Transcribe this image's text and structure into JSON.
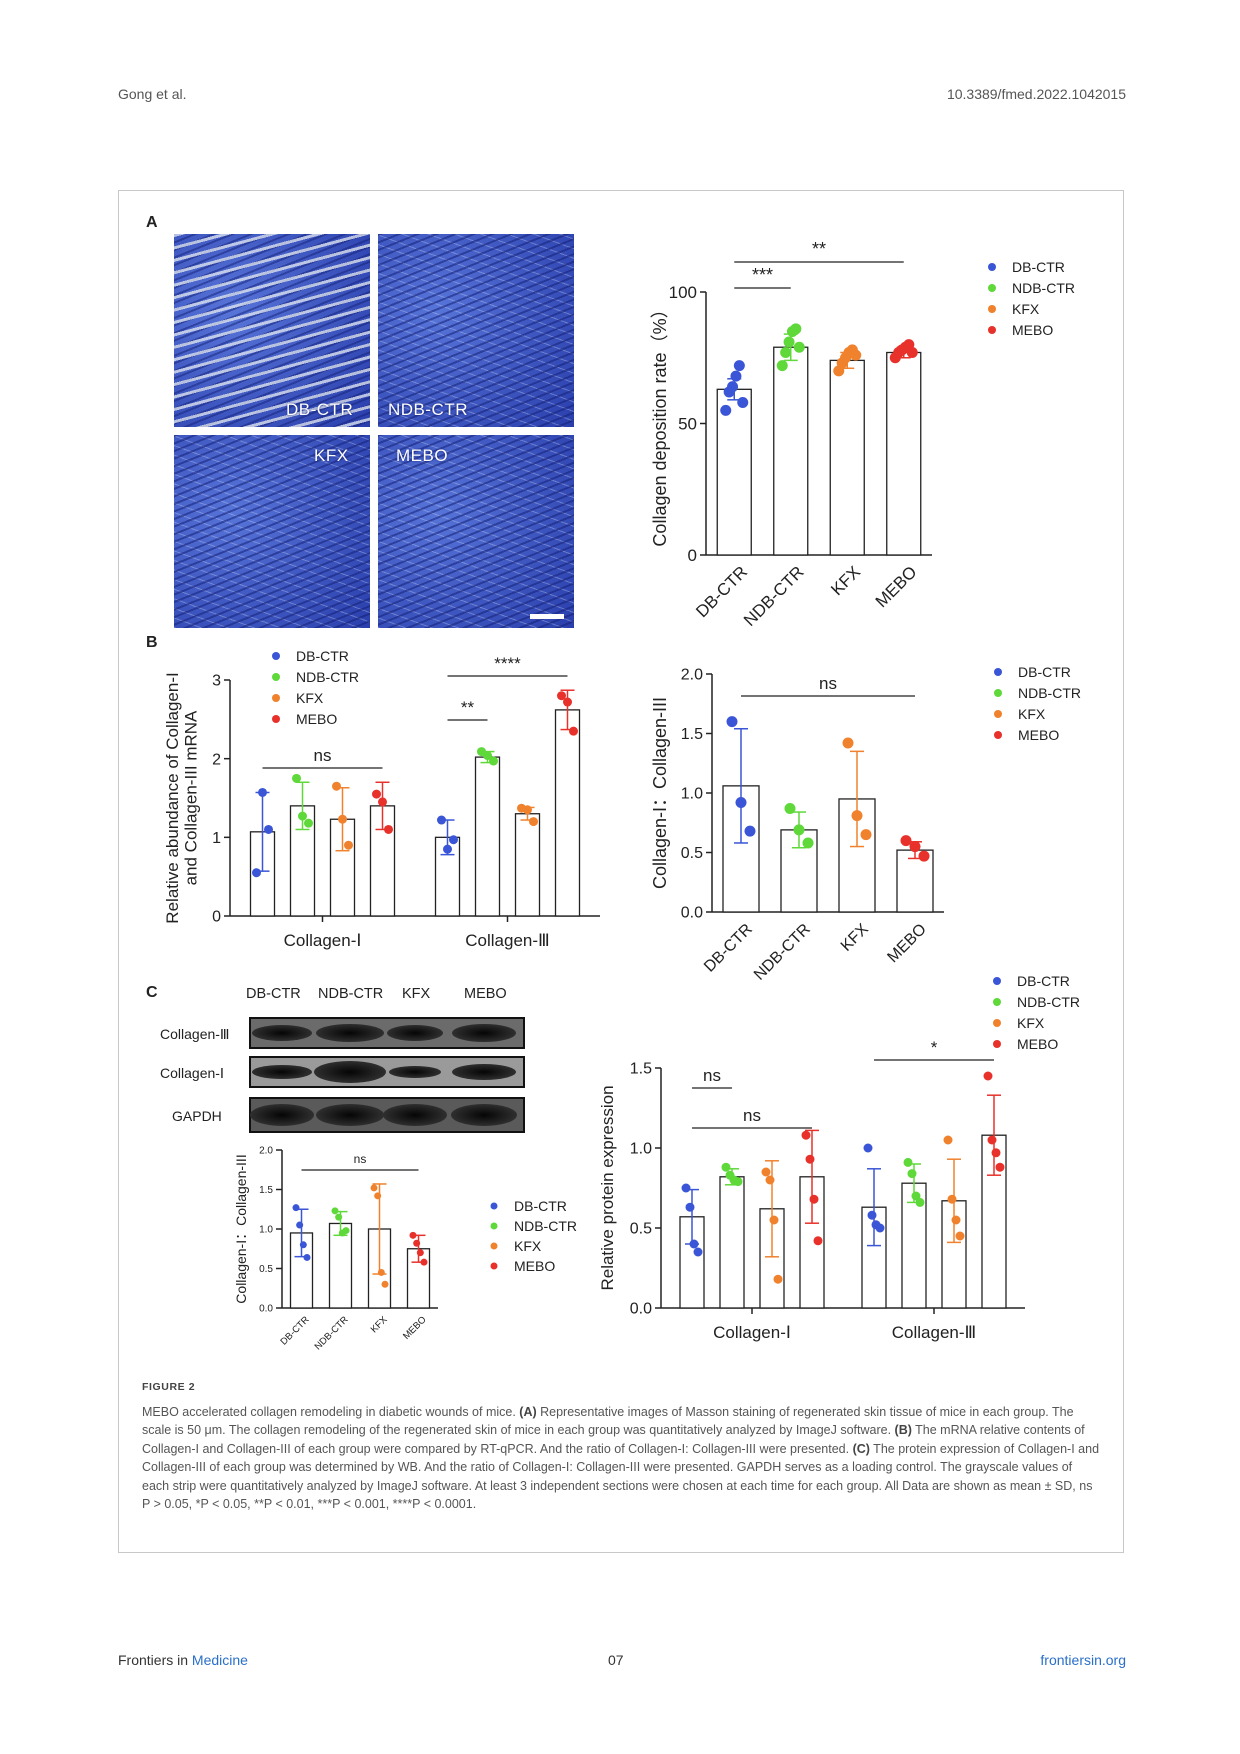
{
  "header": {
    "authors": "Gong et al.",
    "doi": "10.3389/fmed.2022.1042015"
  },
  "panels": {
    "a": "A",
    "b": "B",
    "c": "C"
  },
  "micrographs": [
    {
      "label": "DB-CTR"
    },
    {
      "label": "NDB-CTR"
    },
    {
      "label": "KFX"
    },
    {
      "label": "MEBO"
    }
  ],
  "groups": [
    "DB-CTR",
    "NDB-CTR",
    "KFX",
    "MEBO"
  ],
  "colors": {
    "DB-CTR": "#3a55d6",
    "NDB-CTR": "#5fd83a",
    "KFX": "#f0822d",
    "MEBO": "#e8312a"
  },
  "chart_data": [
    {
      "id": "A",
      "type": "bar",
      "categories": [
        "DB-CTR",
        "NDB-CTR",
        "KFX",
        "MEBO"
      ],
      "values": [
        63,
        79,
        74,
        77
      ],
      "errors": [
        4,
        5,
        3,
        2
      ],
      "points": [
        [
          55,
          62,
          64,
          68,
          72,
          58
        ],
        [
          72,
          77,
          81,
          85,
          86,
          79
        ],
        [
          70,
          73,
          75,
          77,
          78,
          76
        ],
        [
          75,
          77,
          78,
          79,
          80,
          77
        ]
      ],
      "ylabel": "Collagen deposition rate（%）",
      "ylim": [
        0,
        100
      ],
      "yticks": [
        0,
        50,
        100
      ],
      "significance": [
        {
          "from": 1,
          "to": 2,
          "label": "***"
        },
        {
          "from": 1,
          "to": 4,
          "label": "**"
        }
      ],
      "legend": [
        "DB-CTR",
        "NDB-CTR",
        "KFX",
        "MEBO"
      ]
    },
    {
      "id": "B1",
      "type": "bar",
      "groups": [
        "Collagen-Ⅰ",
        "Collagen-Ⅲ"
      ],
      "series": [
        {
          "name": "DB-CTR",
          "values": [
            1.07,
            1.0
          ],
          "errors": [
            0.5,
            0.22
          ],
          "points": [
            [
              0.55,
              1.57,
              1.1
            ],
            [
              1.22,
              0.85,
              0.97
            ]
          ]
        },
        {
          "name": "NDB-CTR",
          "values": [
            1.4,
            2.02
          ],
          "errors": [
            0.3,
            0.07
          ],
          "points": [
            [
              1.75,
              1.27,
              1.18
            ],
            [
              2.09,
              2.04,
              1.97
            ]
          ]
        },
        {
          "name": "KFX",
          "values": [
            1.23,
            1.3
          ],
          "errors": [
            0.4,
            0.08
          ],
          "points": [
            [
              1.65,
              1.23,
              0.9
            ],
            [
              1.37,
              1.35,
              1.2
            ]
          ]
        },
        {
          "name": "MEBO",
          "values": [
            1.4,
            2.62
          ],
          "errors": [
            0.3,
            0.25
          ],
          "points": [
            [
              1.55,
              1.45,
              1.1
            ],
            [
              2.8,
              2.72,
              2.35
            ]
          ]
        }
      ],
      "ylabel": "Relative abundance of Collagen-I and Collagen-III mRNA",
      "ylim": [
        0,
        3
      ],
      "yticks": [
        0,
        1,
        2,
        3
      ],
      "significance": [
        {
          "group": 0,
          "from": 1,
          "to": 4,
          "label": "ns"
        },
        {
          "group": 1,
          "from": 1,
          "to": 2,
          "label": "**"
        },
        {
          "group": 1,
          "from": 1,
          "to": 4,
          "label": "****"
        }
      ],
      "legend": [
        "DB-CTR",
        "NDB-CTR",
        "KFX",
        "MEBO"
      ]
    },
    {
      "id": "B2",
      "type": "bar",
      "categories": [
        "DB-CTR",
        "NDB-CTR",
        "KFX",
        "MEBO"
      ],
      "values": [
        1.06,
        0.69,
        0.95,
        0.52
      ],
      "errors": [
        0.48,
        0.15,
        0.4,
        0.07
      ],
      "points": [
        [
          1.6,
          0.92,
          0.68
        ],
        [
          0.87,
          0.69,
          0.58
        ],
        [
          1.42,
          0.81,
          0.65
        ],
        [
          0.6,
          0.55,
          0.47
        ]
      ],
      "ylabel": "Collagen-I：Collagen-III",
      "ylim": [
        0,
        2
      ],
      "yticks": [
        "0.0",
        "0.5",
        "1.0",
        "1.5",
        "2.0"
      ],
      "significance": [
        {
          "from": 1,
          "to": 4,
          "label": "ns"
        }
      ],
      "legend": [
        "DB-CTR",
        "NDB-CTR",
        "KFX",
        "MEBO"
      ]
    },
    {
      "id": "C1",
      "type": "bar",
      "categories": [
        "DB-CTR",
        "NDB-CTR",
        "KFX",
        "MEBO"
      ],
      "values": [
        0.95,
        1.07,
        1.0,
        0.75
      ],
      "errors": [
        0.3,
        0.15,
        0.57,
        0.17
      ],
      "points": [
        [
          1.27,
          1.05,
          0.8,
          0.64
        ],
        [
          1.23,
          1.15,
          0.95,
          0.98
        ],
        [
          1.52,
          1.42,
          0.45,
          0.3
        ],
        [
          0.92,
          0.82,
          0.7,
          0.58
        ]
      ],
      "ylabel": "Collagen-I：Collagen-III",
      "ylim": [
        0,
        2
      ],
      "yticks": [
        "0.0",
        "0.5",
        "1.0",
        "1.5",
        "2.0"
      ],
      "significance": [
        {
          "from": 1,
          "to": 4,
          "label": "ns"
        }
      ],
      "legend": [
        "DB-CTR",
        "NDB-CTR",
        "KFX",
        "MEBO"
      ]
    },
    {
      "id": "C2",
      "type": "bar",
      "groups": [
        "Collagen-Ⅰ",
        "Collagen-Ⅲ"
      ],
      "series": [
        {
          "name": "DB-CTR",
          "values": [
            0.57,
            0.63
          ],
          "errors": [
            0.17,
            0.24
          ],
          "points": [
            [
              0.75,
              0.63,
              0.4,
              0.35
            ],
            [
              1.0,
              0.58,
              0.52,
              0.5
            ]
          ]
        },
        {
          "name": "NDB-CTR",
          "values": [
            0.82,
            0.78
          ],
          "errors": [
            0.05,
            0.12
          ],
          "points": [
            [
              0.88,
              0.83,
              0.8,
              0.79
            ],
            [
              0.91,
              0.84,
              0.7,
              0.66
            ]
          ]
        },
        {
          "name": "KFX",
          "values": [
            0.62,
            0.67
          ],
          "errors": [
            0.3,
            0.26
          ],
          "points": [
            [
              0.85,
              0.8,
              0.55,
              0.18
            ],
            [
              1.05,
              0.68,
              0.55,
              0.45
            ]
          ]
        },
        {
          "name": "MEBO",
          "values": [
            0.82,
            1.08
          ],
          "errors": [
            0.29,
            0.25
          ],
          "points": [
            [
              1.08,
              0.93,
              0.68,
              0.42
            ],
            [
              1.45,
              1.05,
              0.97,
              0.88
            ]
          ]
        }
      ],
      "ylabel": "Relative protein expression",
      "ylim": [
        0,
        1.5
      ],
      "yticks": [
        "0.0",
        "0.5",
        "1.0",
        "1.5"
      ],
      "significance": [
        {
          "group": 0,
          "from": 1,
          "to": 2,
          "label": "ns"
        },
        {
          "group": 0,
          "from": 1,
          "to": 4,
          "label": "ns"
        },
        {
          "group": 1,
          "from": 1,
          "to": 4,
          "label": "*"
        }
      ],
      "legend": [
        "DB-CTR",
        "NDB-CTR",
        "KFX",
        "MEBO"
      ]
    }
  ],
  "blot": {
    "columns": [
      "DB-CTR",
      "NDB-CTR",
      "KFX",
      "MEBO"
    ],
    "rows": [
      "Collagen-Ⅲ",
      "Collagen-Ⅰ",
      "GAPDH"
    ]
  },
  "caption": {
    "title": "FIGURE 2",
    "intro": "MEBO accelerated collagen remodeling in diabetic wounds of mice. ",
    "a_label": "(A)",
    "a_text": " Representative images of Masson staining of regenerated skin tissue of mice in each group. The scale is 50 μm. The collagen remodeling of the regenerated skin of mice in each group was quantitatively analyzed by ImageJ software. ",
    "b_label": "(B)",
    "b_text": " The mRNA relative contents of Collagen-I and Collagen-III of each group were compared by RT-qPCR. And the ratio of Collagen-I: Collagen-III were presented. ",
    "c_label": "(C)",
    "c_text": " The protein expression of Collagen-I and Collagen-III of each group was determined by WB. And the ratio of Collagen-I: Collagen-III were presented. GAPDH serves as a loading control. The grayscale values of each strip were quantitatively analyzed by ImageJ software. At least 3 independent sections were chosen at each time for each group. All Data are shown as mean ± SD, ns P > 0.05, *P < 0.05, **P < 0.01, ***P < 0.001, ****P < 0.0001."
  },
  "footer": {
    "journal_prefix": "Frontiers in ",
    "journal_name": "Medicine",
    "page": "07",
    "site": "frontiersin.org"
  }
}
